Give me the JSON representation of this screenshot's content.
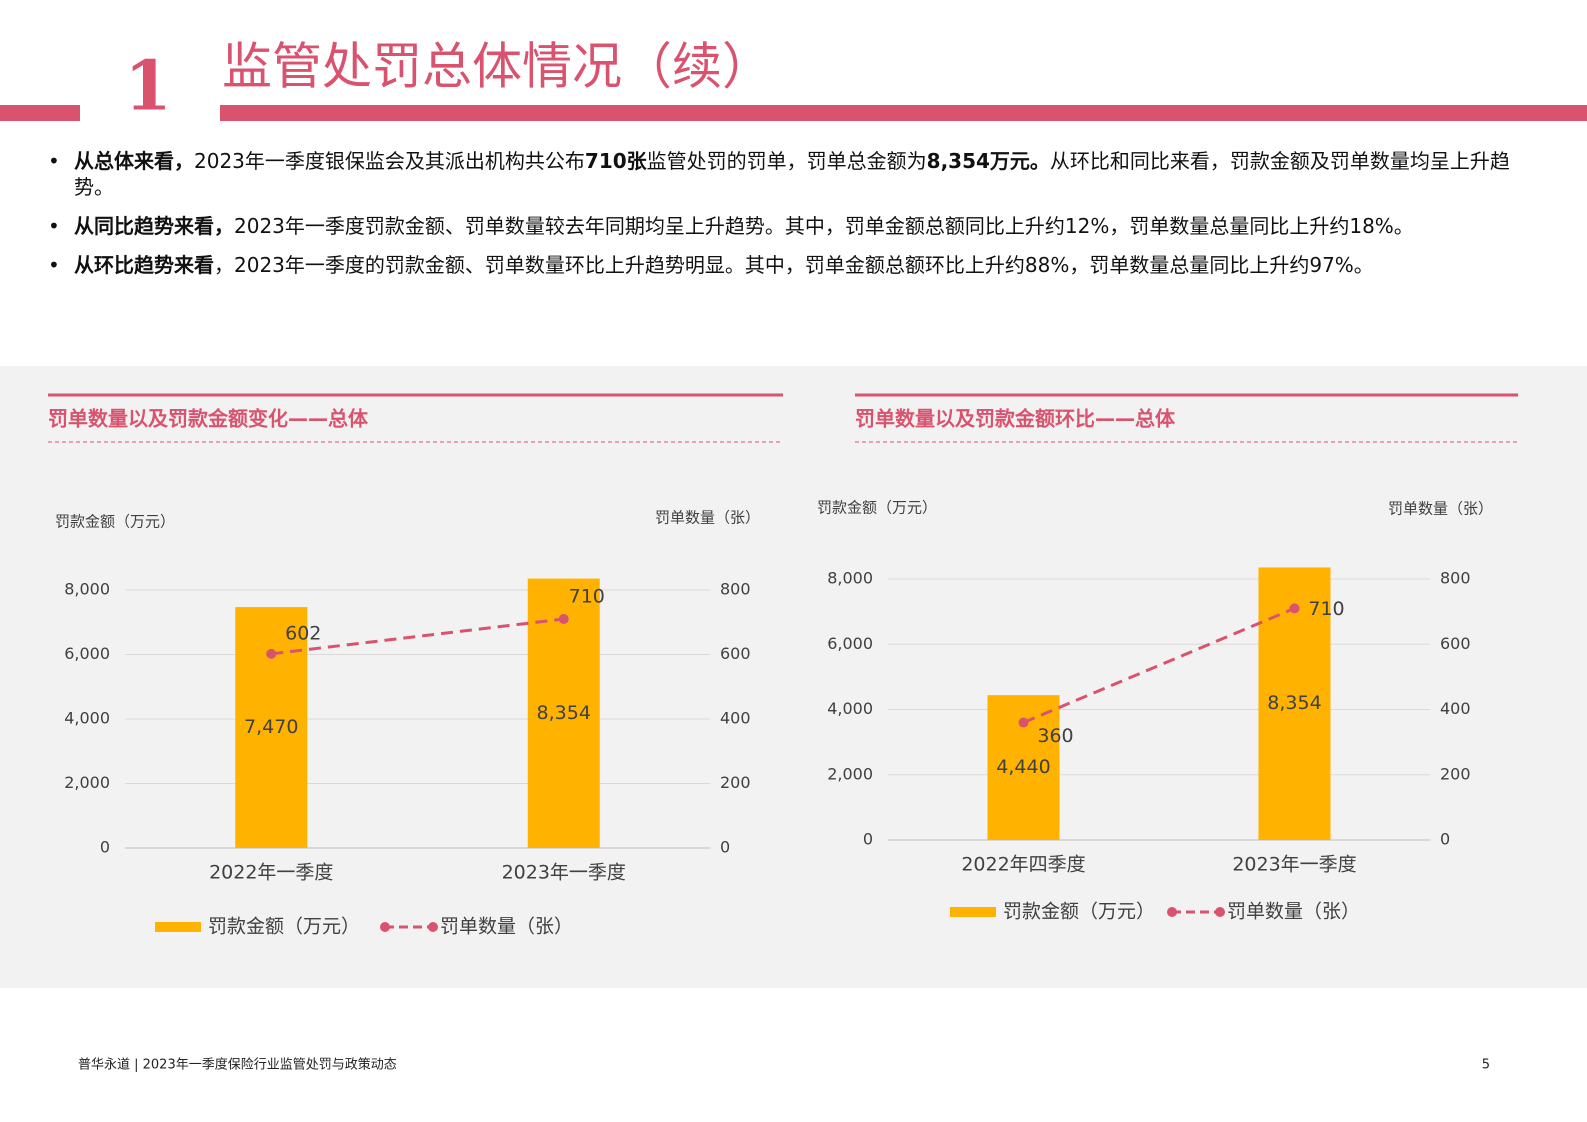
{
  "header": {
    "number": "1",
    "title": "监管处罚总体情况（续）"
  },
  "bullets": [
    [
      {
        "text": "从总体来看，",
        "bold": true
      },
      {
        "text": "2023年一季度银保监会及其派出机构共公布",
        "bold": false
      },
      {
        "text": "710张",
        "bold": true
      },
      {
        "text": "监管处罚的罚单，罚单总金额为",
        "bold": false
      },
      {
        "text": "8,354万元。",
        "bold": true
      },
      {
        "text": "从环比和同比来看，罚款金额及罚单数量均呈上升趋势。",
        "bold": false
      }
    ],
    [
      {
        "text": "从同比趋势来看，",
        "bold": true
      },
      {
        "text": "2023年一季度罚款金额、罚单数量较去年同期均呈上升趋势。其中，罚单金额总额同比上升约12%，罚单数量总量同比上升约18%。",
        "bold": false
      }
    ],
    [
      {
        "text": "从环比趋势来看",
        "bold": true
      },
      {
        "text": "，2023年一季度的罚款金额、罚单数量环比上升趋势明显。其中，罚单金额总额环比上升约88%，罚单数量总量同比上升约97%。",
        "bold": false
      }
    ]
  ],
  "chart_data": [
    {
      "type": "bar",
      "title": "罚单数量以及罚款金额变化——总体",
      "y_label": "罚款金额（万元）",
      "y2_label": "罚单数量（张）",
      "categories": [
        "2022年一季度",
        "2023年一季度"
      ],
      "series": [
        {
          "name": "罚款金额（万元）",
          "color": "#ffb300",
          "values": [
            7470,
            8354
          ],
          "value_labels": [
            "7,470",
            "8,354"
          ]
        },
        {
          "name": "罚单数量（张）",
          "color": "#d9536f",
          "values": [
            602,
            710
          ],
          "axis": "y2",
          "dashed": true
        }
      ],
      "ylim": [
        0,
        9000
      ],
      "yticks": [
        0,
        {
          "value": 2000,
          "label": "2,000"
        },
        {
          "value": 4000,
          "label": "4,000"
        },
        {
          "value": 6000,
          "label": "6,000"
        },
        {
          "value": 8000,
          "label": "8,000"
        }
      ],
      "y2lim": [
        0,
        900
      ],
      "y2ticks": [
        0,
        200,
        400,
        600,
        800
      ],
      "grid": true
    },
    {
      "type": "bar",
      "title": "罚单数量以及罚款金额环比——总体",
      "y_label": "罚款金额（万元）",
      "y2_label": "罚单数量（张）",
      "categories": [
        "2022年四季度",
        "2023年一季度"
      ],
      "series": [
        {
          "name": "罚款金额（万元）",
          "color": "#ffb300",
          "values": [
            4440,
            8354
          ],
          "value_labels": [
            "4,440",
            "8,354"
          ]
        },
        {
          "name": "罚单数量（张）",
          "color": "#d9536f",
          "values": [
            360,
            710
          ],
          "axis": "y2",
          "dashed": true
        }
      ],
      "ylim": [
        0,
        9000
      ],
      "yticks": [
        0,
        {
          "value": 2000,
          "label": "2,000"
        },
        {
          "value": 4000,
          "label": "4,000"
        },
        {
          "value": 6000,
          "label": "6,000"
        },
        {
          "value": 8000,
          "label": "8,000"
        }
      ],
      "y2lim": [
        0,
        900
      ],
      "y2ticks": [
        0,
        200,
        400,
        600,
        800
      ],
      "grid": true
    }
  ],
  "footer": {
    "source": "普华永道 | 2023年一季度保险行业监管处罚与政策动态",
    "page": "5"
  }
}
